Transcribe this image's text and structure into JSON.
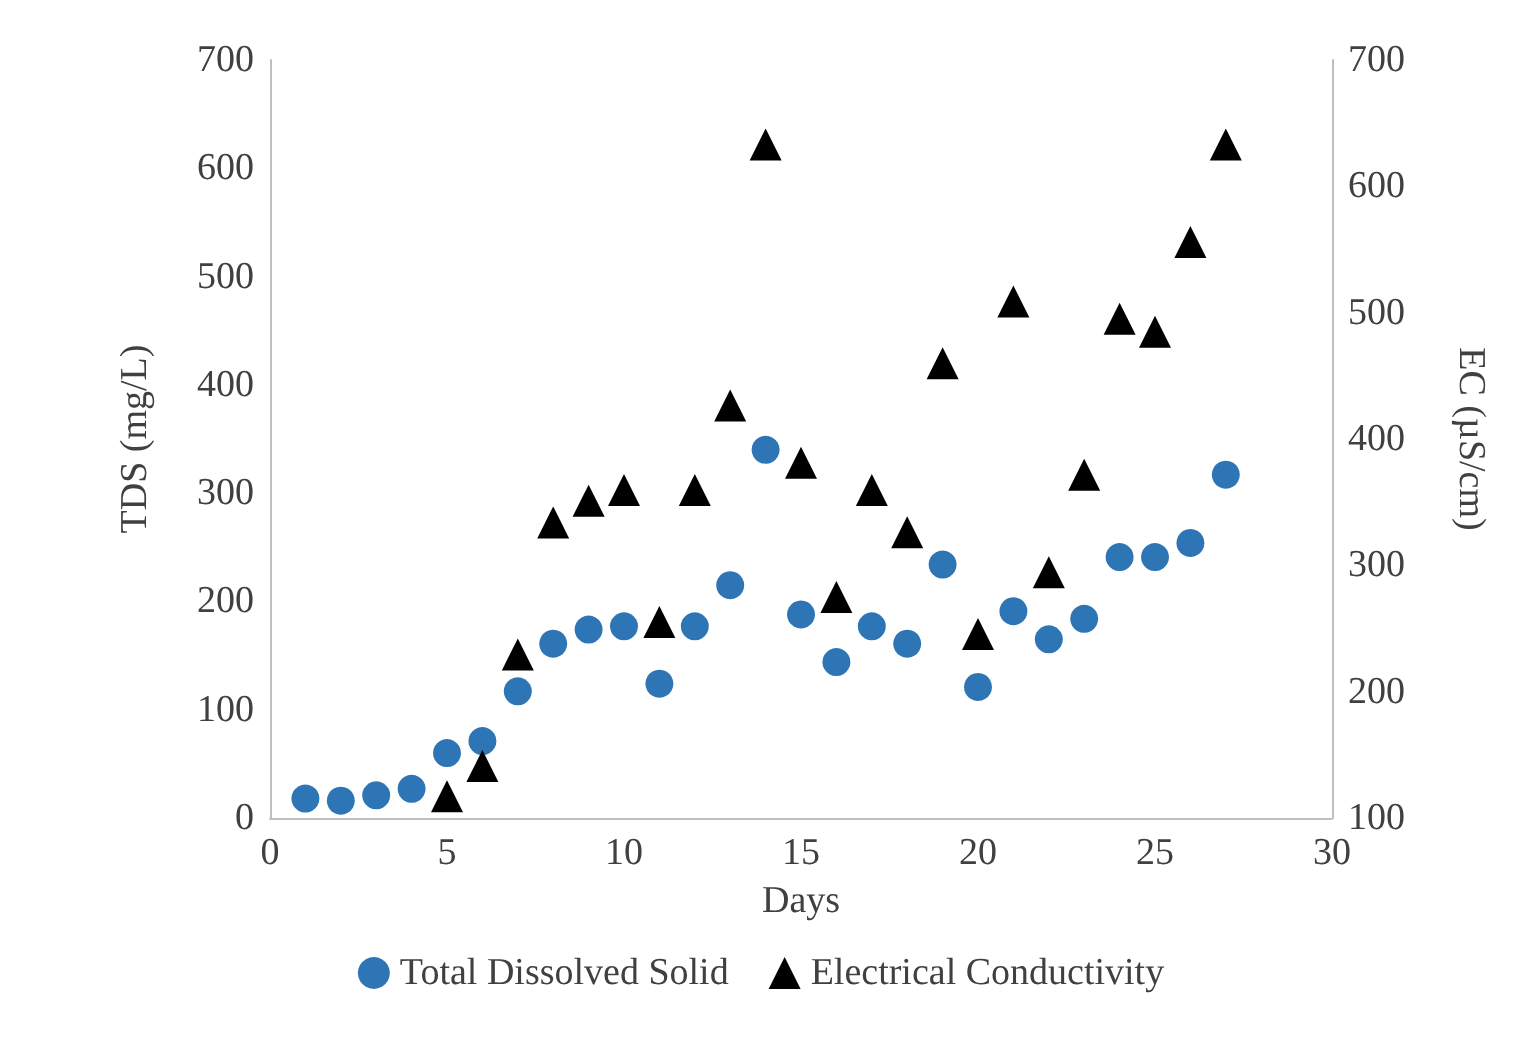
{
  "chart_data": {
    "type": "scatter",
    "xlabel": "Days",
    "ylabel": "TDS (mg/L)",
    "y2label": "EC (µS/cm)",
    "xlim": [
      0,
      30
    ],
    "xticks": [
      0,
      5,
      10,
      15,
      20,
      25,
      30
    ],
    "ylim": [
      0,
      700
    ],
    "yticks": [
      0,
      100,
      200,
      300,
      400,
      500,
      600,
      700
    ],
    "y2lim": [
      100,
      700
    ],
    "y2ticks": [
      100,
      200,
      300,
      400,
      500,
      600,
      700
    ],
    "grid": false,
    "legend": "bottom",
    "series": [
      {
        "name": "Total Dissolved Solid",
        "color": "#2e75b6",
        "marker": "circle",
        "x": [
          1,
          2,
          3,
          4,
          5,
          6,
          7,
          8,
          9,
          10,
          11,
          12,
          13,
          14,
          15,
          16,
          17,
          18,
          19,
          20,
          21,
          22,
          23,
          24,
          25,
          26,
          27
        ],
        "values": [
          18,
          16,
          21,
          27,
          60,
          71,
          117,
          161,
          174,
          177,
          124,
          177,
          215,
          340,
          188,
          144,
          177,
          161,
          234,
          121,
          191,
          165,
          184,
          241,
          241,
          254,
          317
        ]
      },
      {
        "name": "Electrical Conductivity",
        "color": "#000000",
        "marker": "triangle",
        "x": [
          5,
          6,
          7,
          8,
          9,
          10,
          11,
          12,
          13,
          14,
          15,
          16,
          17,
          18,
          19,
          20,
          21,
          22,
          23,
          24,
          25,
          26,
          27
        ],
        "values": [
          20,
          48,
          151,
          273,
          293,
          303,
          181,
          303,
          381,
          622,
          328,
          204,
          303,
          264,
          420,
          170,
          477,
          227,
          317,
          461,
          449,
          532,
          622
        ]
      }
    ]
  }
}
